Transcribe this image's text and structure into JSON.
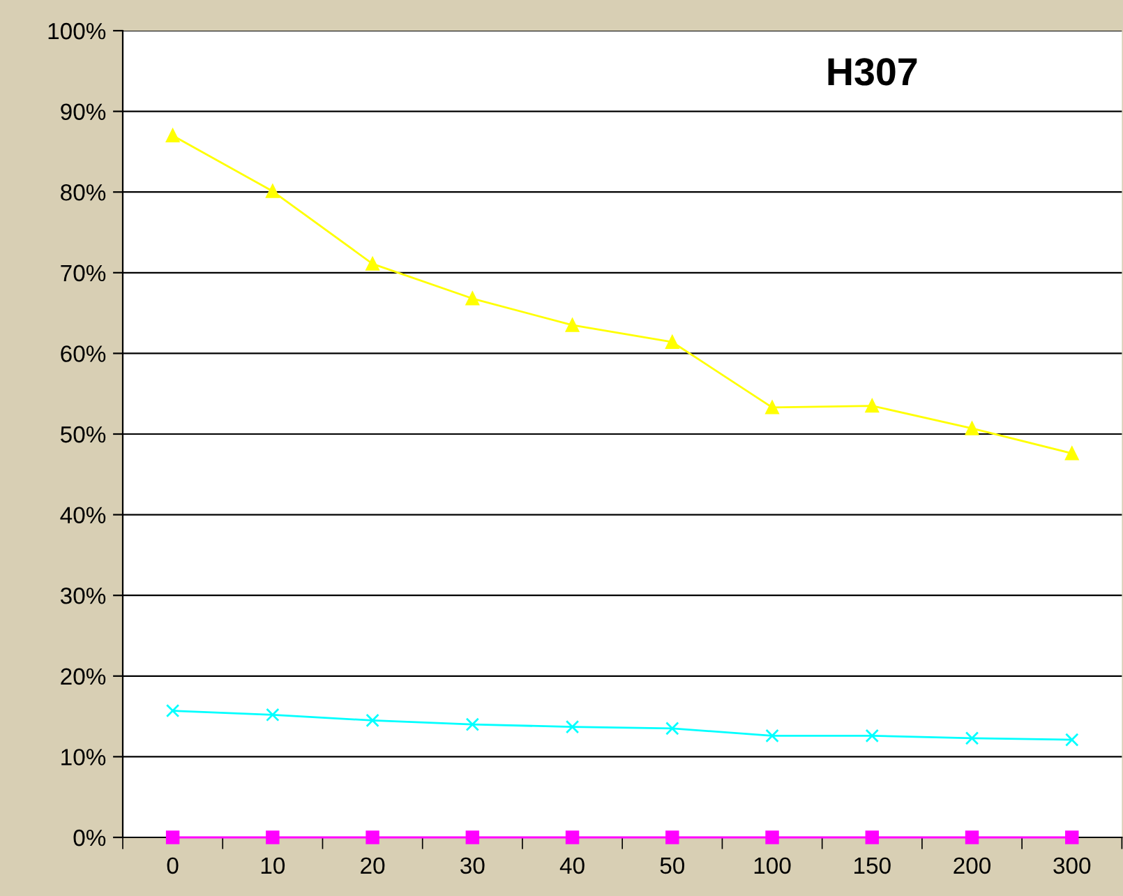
{
  "chart_data": {
    "type": "line",
    "title": "H307",
    "categories": [
      "0",
      "10",
      "20",
      "30",
      "40",
      "50",
      "100",
      "150",
      "200",
      "300"
    ],
    "series": [
      {
        "color": "#ffff00",
        "marker": "triangle",
        "values": [
          87.0,
          80.1,
          71.1,
          66.8,
          63.5,
          61.4,
          53.3,
          53.5,
          50.7,
          47.6
        ]
      },
      {
        "color": "#00ffff",
        "marker": "cross",
        "values": [
          15.7,
          15.2,
          14.5,
          14.0,
          13.7,
          13.5,
          12.6,
          12.6,
          12.3,
          12.1
        ]
      },
      {
        "color": "#ff00ff",
        "marker": "square",
        "values": [
          0,
          0,
          0,
          0,
          0,
          0,
          0,
          0,
          0,
          0
        ]
      }
    ],
    "ylim": [
      0,
      100
    ],
    "yticks": [
      {
        "value": 0,
        "label": "0%"
      },
      {
        "value": 10,
        "label": "10%"
      },
      {
        "value": 20,
        "label": "20%"
      },
      {
        "value": 30,
        "label": "30%"
      },
      {
        "value": 40,
        "label": "40%"
      },
      {
        "value": 50,
        "label": "50%"
      },
      {
        "value": 60,
        "label": "60%"
      },
      {
        "value": 70,
        "label": "70%"
      },
      {
        "value": 80,
        "label": "80%"
      },
      {
        "value": 90,
        "label": "90%"
      },
      {
        "value": 100,
        "label": "100%"
      }
    ],
    "grid": "y",
    "legend": false
  }
}
